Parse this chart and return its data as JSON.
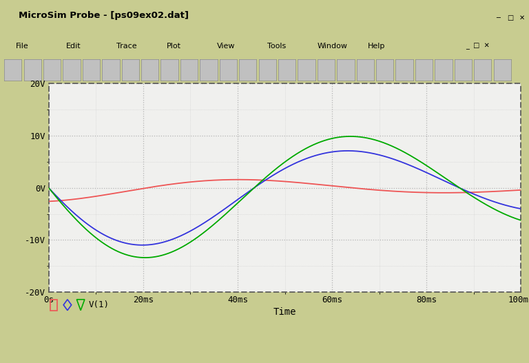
{
  "title": "MicroSim Probe - [ps09ex02.dat]",
  "xlabel": "Time",
  "xlim": [
    0,
    0.1
  ],
  "ylim": [
    -20,
    20
  ],
  "xtick_vals": [
    0,
    0.02,
    0.04,
    0.06,
    0.08,
    0.1
  ],
  "xtick_labels": [
    "0s",
    "20ms",
    "40ms",
    "60ms",
    "80ms",
    "100ms"
  ],
  "ytick_vals": [
    -20,
    -10,
    0,
    10,
    20
  ],
  "ytick_labels": [
    "-20V",
    "-10V",
    "0V",
    "10V",
    "20V"
  ],
  "bg_color": "#c8cc90",
  "plot_bg": "#f0f0ee",
  "titlebar_bg": "#8aaa44",
  "grid_color": "#999999",
  "color_red": "#ee5555",
  "color_blue": "#3333dd",
  "color_green": "#00aa00",
  "legend_label": "V(1)",
  "omega_hz": 11.5,
  "blue_amp": 13.5,
  "blue_decay": 10.0,
  "green_amp": 15.5,
  "green_decay": 7.0,
  "red_amp": 2.6,
  "red_decay": 12.0,
  "red_phase": 1.5
}
